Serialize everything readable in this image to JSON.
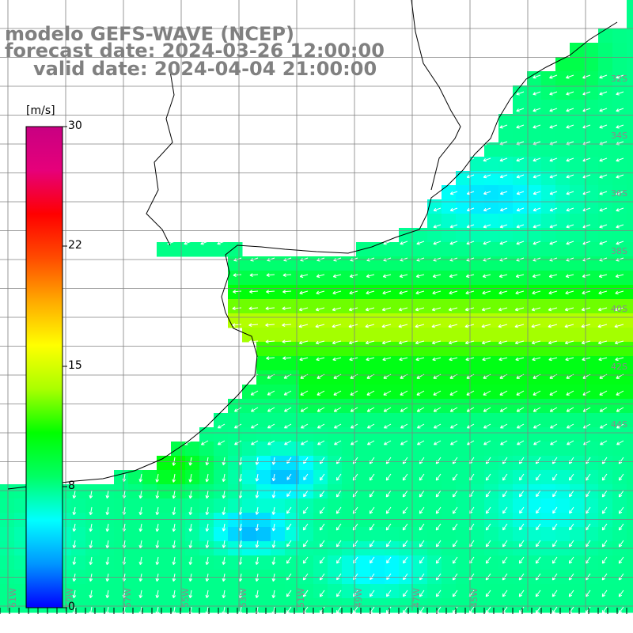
{
  "titles": {
    "model": "modelo GEFS-WAVE (NCEP)",
    "forecast": "forecast date: 2024-03-26 12:00:00",
    "valid": "valid date: 2024-04-04 21:00:00"
  },
  "colorbar": {
    "unit": "[m/s]",
    "min": 0,
    "max": 30,
    "ticks": [
      "30",
      "22",
      "15",
      "8",
      "0"
    ],
    "tick_values": [
      30,
      22,
      15,
      8,
      0
    ],
    "colors": [
      "#0000ff",
      "#0096ff",
      "#00ffff",
      "#00ff64",
      "#00ff00",
      "#aaff00",
      "#ffff00",
      "#ffaa00",
      "#ff4b00",
      "#ff0000",
      "#e6007a",
      "#c80082"
    ]
  },
  "map": {
    "land_color": "#ffffff",
    "coast_color": "#000000",
    "grid_color": "#808080",
    "grid": true,
    "vector_color": "#ffffff",
    "lat_labels": [
      "32S",
      "34S",
      "36S",
      "38S",
      "40S",
      "42S",
      "44S"
    ],
    "lon_labels": [
      "61W",
      "59W",
      "57W",
      "55W",
      "53W",
      "51W",
      "49W",
      "47W",
      "45W"
    ]
  }
}
